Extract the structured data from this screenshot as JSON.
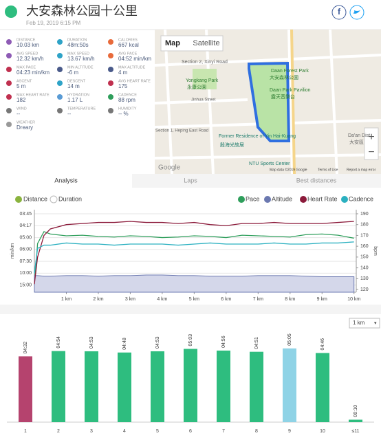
{
  "header": {
    "title": "大安森林公园十公里",
    "date": "Feb 19, 2019 6:15 PM"
  },
  "stats": [
    {
      "label": "DISTANCE",
      "value": "10.03 km"
    },
    {
      "label": "DURATION",
      "value": "48m:50s"
    },
    {
      "label": "CALORIES",
      "value": "667 kcal"
    },
    {
      "label": "AVG SPEED",
      "value": "12.32 km/h"
    },
    {
      "label": "MAX SPEED",
      "value": "13.67 km/h"
    },
    {
      "label": "AVG PACE",
      "value": "04:52 min/km"
    },
    {
      "label": "MAX PACE",
      "value": "04:23 min/km"
    },
    {
      "label": "MIN ALTITUDE",
      "value": "-6 m"
    },
    {
      "label": "MAX ALTITUDE",
      "value": "4 m"
    },
    {
      "label": "ASCENT",
      "value": "5 m"
    },
    {
      "label": "DESCENT",
      "value": "14 m"
    },
    {
      "label": "AVG HEART RATE",
      "value": "175"
    },
    {
      "label": "MAX HEART RATE",
      "value": "182"
    },
    {
      "label": "HYDRATION",
      "value": "1.17 L"
    },
    {
      "label": "CADENCE",
      "value": "88 rpm"
    },
    {
      "label": "WIND",
      "value": "--"
    },
    {
      "label": "TEMPERATURE",
      "value": "--"
    },
    {
      "label": "HUMIDITY",
      "value": "-- %"
    },
    {
      "label": "WEATHER",
      "value": "Dreary"
    }
  ],
  "map": {
    "buttons": [
      "Map",
      "Satellite"
    ],
    "labels": [
      "Section 2, Xinyi Road",
      "Daan Forest Park",
      "大安森林公園",
      "Daan Park Pavilion",
      "露天音樂台",
      "Yongkang Park",
      "永康公園",
      "Jinhua Street",
      "Section 1, Heping East Road",
      "Former Residence of Yin Hai-Kuang",
      "殷海光故居",
      "NTU Sports Center",
      "Da'an Dist.",
      "大安區",
      "Google",
      "Map data ©2019 Google",
      "Terms of Use",
      "Report a map error"
    ]
  },
  "tabs": [
    "Analysis",
    "Laps",
    "Best distances"
  ],
  "x_options": [
    "Distance",
    "Duration"
  ],
  "lap_unit": "1 km",
  "chart_data": [
    {
      "type": "line",
      "y_label": "min/km",
      "y2_label": "bpm",
      "x": [
        0,
        0.1,
        0.3,
        0.5,
        1,
        1.5,
        2,
        2.5,
        3,
        3.5,
        4,
        4.5,
        5,
        5.5,
        6,
        6.5,
        7,
        7.5,
        8,
        8.5,
        9,
        9.5,
        10
      ],
      "xlim": [
        0,
        10.07
      ],
      "xticks": [
        {
          "value": 1,
          "label": "1 km"
        },
        {
          "value": 2,
          "label": "2 km"
        },
        {
          "value": 3,
          "label": "3 km"
        },
        {
          "value": 4,
          "label": "4 km"
        },
        {
          "value": 5,
          "label": "5 km"
        },
        {
          "value": 6,
          "label": "6 km"
        },
        {
          "value": 7,
          "label": "7 km"
        },
        {
          "value": 8,
          "label": "8 km"
        },
        {
          "value": 9,
          "label": "9 km"
        },
        {
          "value": 10,
          "label": "10 km"
        }
      ],
      "ylim": [
        2.8,
        16.7
      ],
      "yticks": [
        {
          "value": 16,
          "label": "03:45"
        },
        {
          "value": 14,
          "label": "04:17"
        },
        {
          "value": 12,
          "label": "05:00"
        },
        {
          "value": 10,
          "label": "06:00"
        },
        {
          "value": 8,
          "label": "07:30"
        },
        {
          "value": 6,
          "label": "10:00"
        },
        {
          "value": 4,
          "label": "15:00"
        }
      ],
      "y2lim": [
        117.5,
        193.8
      ],
      "y2ticks": [
        120,
        130,
        140,
        150,
        160,
        170,
        180,
        190
      ],
      "grid": true,
      "series": [
        {
          "name": "Pace",
          "color": "#2e9e5b",
          "values": [
            4,
            11,
            13,
            12.6,
            12.3,
            12.4,
            12.2,
            12.1,
            12.3,
            12.2,
            12.0,
            12.1,
            12.3,
            12.2,
            12.0,
            12.4,
            12.3,
            12.2,
            12.1,
            12.5,
            12.6,
            12.4,
            11.9
          ]
        },
        {
          "name": "Altitude",
          "color": "#6b78b0",
          "area": true,
          "values": [
            5.6,
            5.6,
            5.5,
            5.5,
            5.6,
            5.6,
            5.5,
            5.6,
            5.6,
            5.7,
            5.7,
            5.6,
            5.6,
            5.5,
            5.5,
            5.5,
            5.6,
            5.6,
            5.6,
            5.5,
            5.4,
            5.4,
            5.4
          ]
        },
        {
          "name": "Heart Rate",
          "color": "#8b1a3a",
          "axis": "y2",
          "values": [
            125,
            150,
            170,
            176,
            180,
            181,
            182,
            182,
            183,
            182,
            182,
            181,
            182,
            180,
            179,
            181,
            181,
            182,
            181,
            181,
            181,
            182,
            183
          ]
        },
        {
          "name": "Cadence",
          "color": "#2ab0c0",
          "axis": "y2",
          "values": [
            135,
            158,
            161,
            161,
            163,
            162,
            162,
            161,
            162,
            162,
            162,
            161,
            162,
            163,
            162,
            162,
            162,
            163,
            162,
            162,
            163,
            163,
            164
          ]
        }
      ]
    },
    {
      "type": "bar",
      "categories": [
        "1",
        "2",
        "3",
        "4",
        "5",
        "6",
        "7",
        "8",
        "9",
        "10",
        "≤11"
      ],
      "values": [
        272,
        294,
        293,
        288,
        293,
        303,
        296,
        291,
        305,
        286,
        10
      ],
      "value_labels": [
        "04:32",
        "04:54",
        "04:53",
        "04:48",
        "04:53",
        "05:03",
        "04:56",
        "04:51",
        "05:05",
        "04:46",
        "00:10"
      ],
      "colors": [
        "#b5436e",
        "#2ebd7f",
        "#2ebd7f",
        "#2ebd7f",
        "#2ebd7f",
        "#2ebd7f",
        "#2ebd7f",
        "#2ebd7f",
        "#8fd3e6",
        "#2ebd7f",
        "#2ebd7f"
      ],
      "ylim": [
        0,
        310
      ]
    }
  ]
}
